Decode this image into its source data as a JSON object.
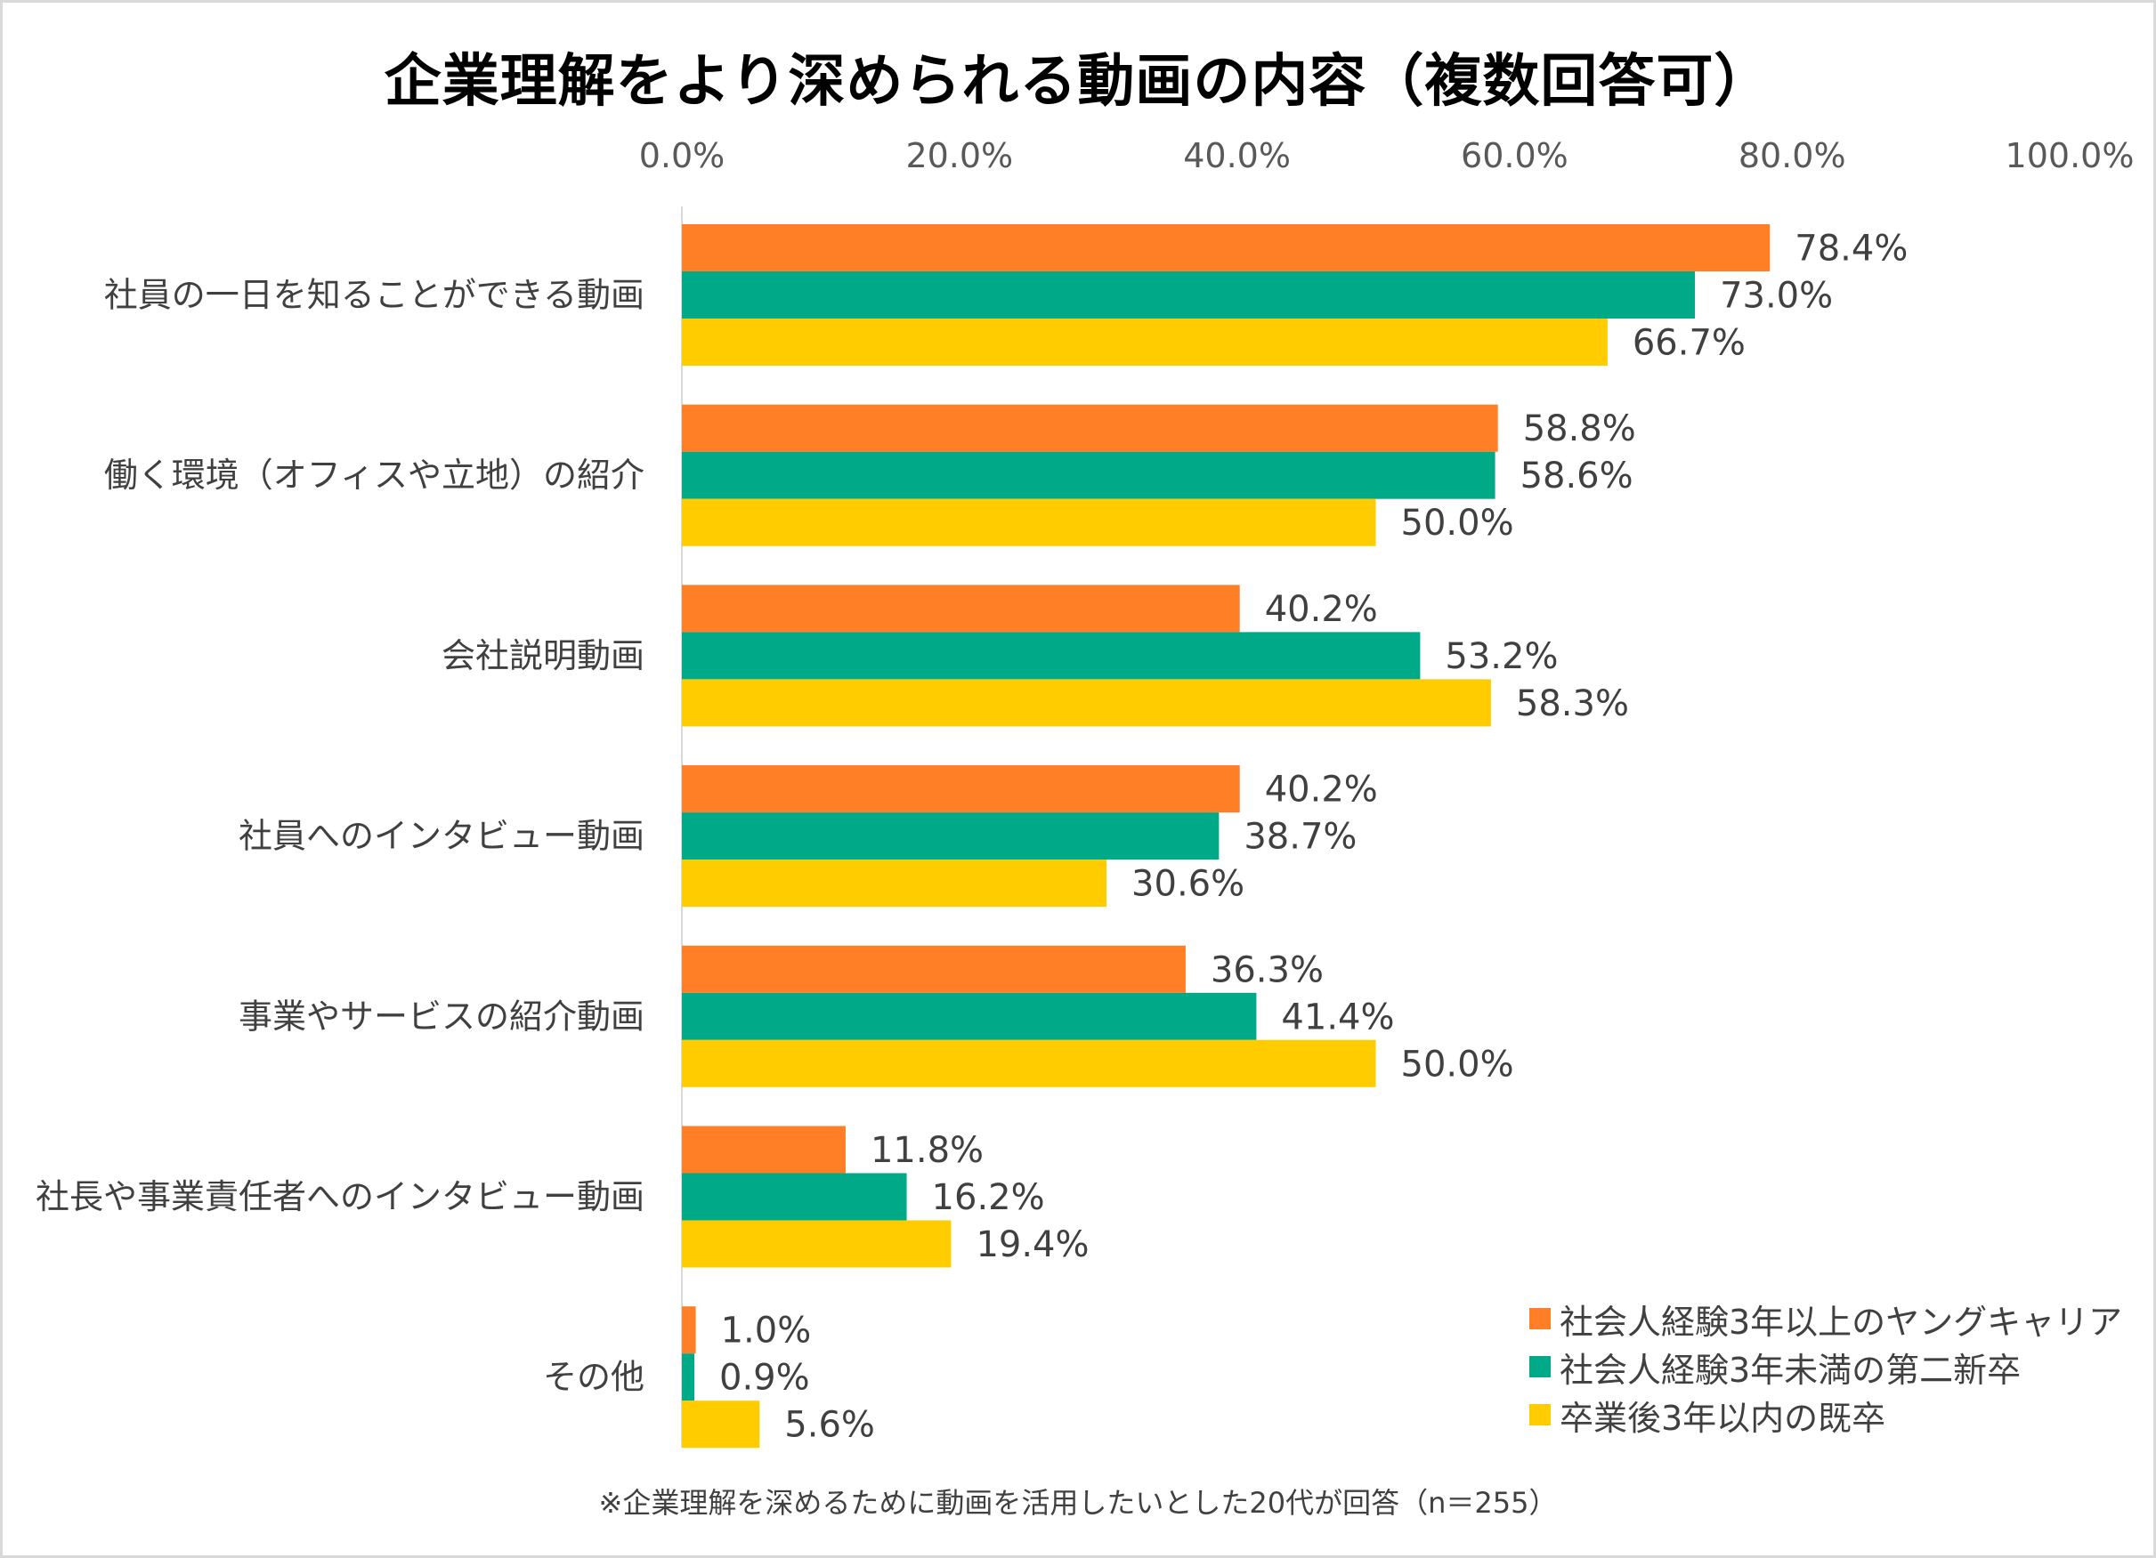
{
  "chart_data": {
    "type": "bar",
    "orientation": "horizontal",
    "title": "企業理解をより深められる動画の内容（複数回答可）",
    "categories": [
      "社員の一日を知ることができる動画",
      "働く環境（オフィスや立地）の紹介",
      "会社説明動画",
      "社員へのインタビュー動画",
      "事業やサービスの紹介動画",
      "社長や事業責任者へのインタビュー動画",
      "その他"
    ],
    "series": [
      {
        "name": "社会人経験3年以上のヤングキャリア",
        "color": "#FF7F27",
        "values": [
          78.4,
          58.8,
          40.2,
          40.2,
          36.3,
          11.8,
          1.0
        ],
        "labels": [
          "78.4%",
          "58.8%",
          "40.2%",
          "40.2%",
          "36.3%",
          "11.8%",
          "1.0%"
        ]
      },
      {
        "name": "社会人経験3年未満の第二新卒",
        "color": "#00AA88",
        "values": [
          73.0,
          58.6,
          53.2,
          38.7,
          41.4,
          16.2,
          0.9
        ],
        "labels": [
          "73.0%",
          "58.6%",
          "53.2%",
          "38.7%",
          "41.4%",
          "16.2%",
          "0.9%"
        ]
      },
      {
        "name": "卒業後3年以内の既卒",
        "color": "#FFCC00",
        "values": [
          66.7,
          50.0,
          58.3,
          30.6,
          50.0,
          19.4,
          5.6
        ],
        "labels": [
          "66.7%",
          "50.0%",
          "58.3%",
          "30.6%",
          "50.0%",
          "19.4%",
          "5.6%"
        ]
      }
    ],
    "xlim": [
      0,
      100
    ],
    "xticks": [
      0,
      20,
      40,
      60,
      80,
      100
    ],
    "xtick_labels": [
      "0.0%",
      "20.0%",
      "40.0%",
      "60.0%",
      "80.0%",
      "100.0%"
    ],
    "axis_position": "top",
    "grid": false,
    "legend_position": "bottom-right",
    "footnote": "※企業理解を深めるために動画を活用したいとした20代が回答（n＝255）"
  }
}
